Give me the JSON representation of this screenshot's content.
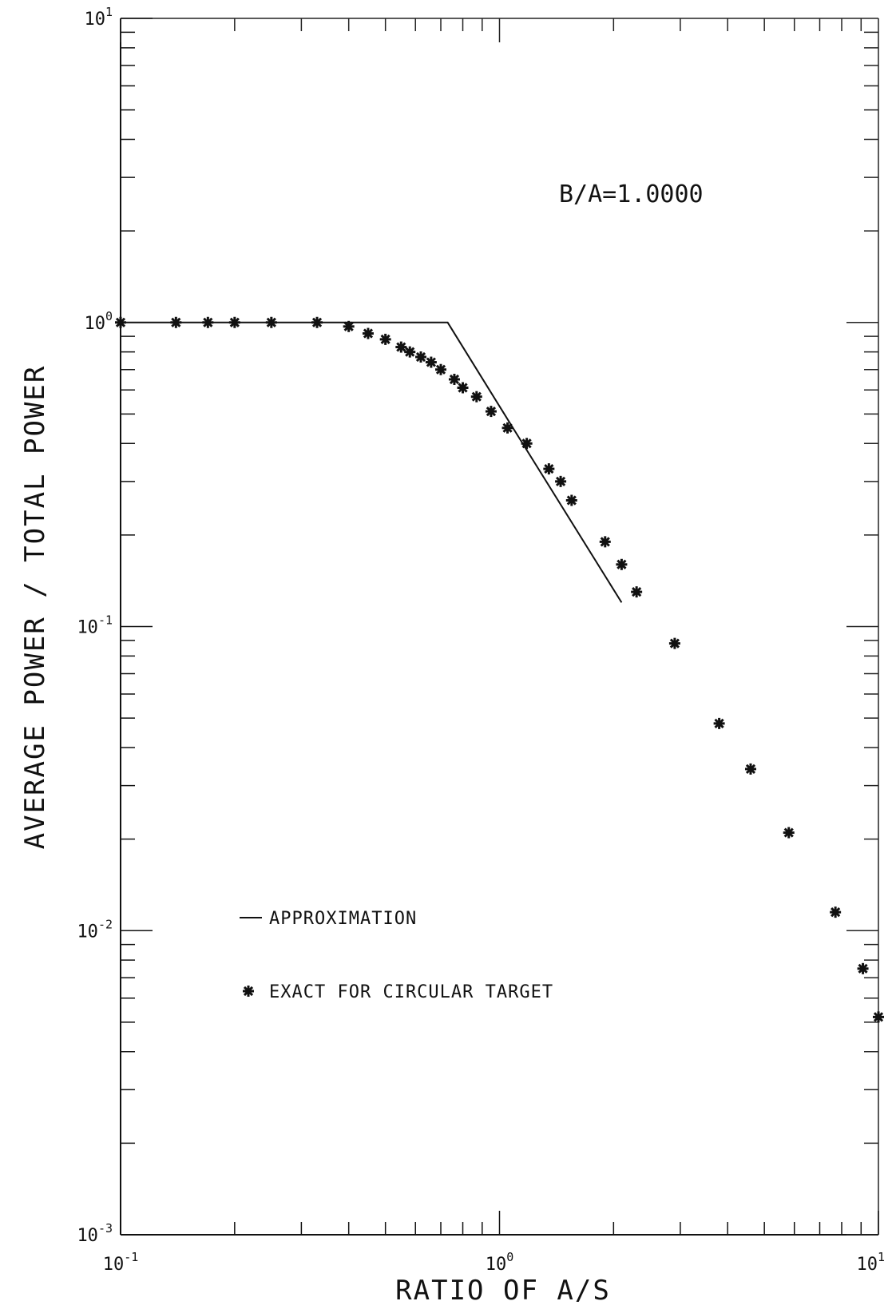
{
  "chart_data": {
    "type": "scatter",
    "title": "",
    "xlabel": "RATIO OF A/S",
    "ylabel": "AVERAGE POWER / TOTAL POWER",
    "xscale": "log",
    "yscale": "log",
    "xlim": [
      0.1,
      10
    ],
    "ylim": [
      0.001,
      10
    ],
    "grid": false,
    "legend_placement": "lower-left",
    "annotation": "B/A=1.0000",
    "x_ticks": [
      {
        "base": "10",
        "exp": "-1",
        "value": 0.1
      },
      {
        "base": "10",
        "exp": "0",
        "value": 1
      },
      {
        "base": "10",
        "exp": "1",
        "value": 10
      }
    ],
    "y_ticks": [
      {
        "base": "10",
        "exp": "1",
        "value": 10
      },
      {
        "base": "10",
        "exp": "0",
        "value": 1
      },
      {
        "base": "10",
        "exp": "-1",
        "value": 0.1
      },
      {
        "base": "10",
        "exp": "-2",
        "value": 0.01
      },
      {
        "base": "10",
        "exp": "-3",
        "value": 0.001
      }
    ],
    "series": [
      {
        "name": "APPROXIMATION",
        "style": "line",
        "color": "#111111",
        "x": [
          0.1,
          0.73,
          1.0,
          2.1
        ],
        "y": [
          1.0,
          1.0,
          0.53,
          0.12
        ]
      },
      {
        "name": "EXACT FOR CIRCULAR TARGET",
        "style": "marker",
        "marker": "asterisk",
        "color": "#111111",
        "x": [
          0.1,
          0.14,
          0.17,
          0.2,
          0.25,
          0.33,
          0.4,
          0.45,
          0.5,
          0.55,
          0.58,
          0.62,
          0.66,
          0.7,
          0.76,
          0.8,
          0.87,
          0.95,
          1.05,
          1.18,
          1.35,
          1.45,
          1.55,
          1.9,
          2.1,
          2.3,
          2.9,
          3.8,
          4.6,
          5.8,
          7.7,
          9.1,
          10.0
        ],
        "y": [
          1.0,
          1.0,
          1.0,
          1.0,
          1.0,
          1.0,
          0.97,
          0.92,
          0.88,
          0.83,
          0.8,
          0.77,
          0.74,
          0.7,
          0.65,
          0.61,
          0.57,
          0.51,
          0.45,
          0.4,
          0.33,
          0.3,
          0.26,
          0.19,
          0.16,
          0.13,
          0.088,
          0.048,
          0.034,
          0.021,
          0.0115,
          0.0075,
          0.0052
        ]
      }
    ]
  }
}
